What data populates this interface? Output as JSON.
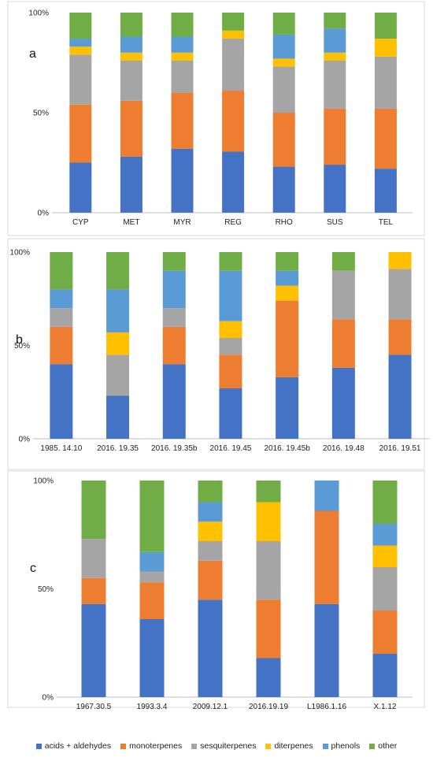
{
  "categories_order": [
    "acids + aldehydes",
    "monoterpenes",
    "sesquiterpenes",
    "diterpenes",
    "phenols",
    "other"
  ],
  "colors": {
    "acids + aldehydes": "#4472C4",
    "monoterpenes": "#ED7D31",
    "sesquiterpenes": "#A5A5A5",
    "diterpenes": "#FFC000",
    "phenols": "#5B9BD5",
    "other": "#70AD47"
  },
  "legend": {
    "items": [
      "acids + aldehydes",
      "monoterpenes",
      "sesquiterpenes",
      "diterpenes",
      "phenols",
      "other"
    ],
    "placement": "bottom"
  },
  "chart_data": [
    {
      "type": "bar",
      "stacked": true,
      "panel_label": "a",
      "yticks": [
        "0%",
        "50%",
        "100%"
      ],
      "ylim": [
        0,
        100
      ],
      "categories": [
        "CYP",
        "MET",
        "MYR",
        "REG",
        "RHO",
        "SUS",
        "TEL"
      ],
      "series": [
        {
          "name": "acids + aldehydes",
          "values": [
            25,
            28,
            32,
            30.5,
            23,
            24,
            22
          ]
        },
        {
          "name": "monoterpenes",
          "values": [
            29,
            28,
            28,
            30.5,
            27,
            28,
            30
          ]
        },
        {
          "name": "sesquiterpenes",
          "values": [
            25,
            20,
            16,
            26,
            23,
            24,
            26
          ]
        },
        {
          "name": "diterpenes",
          "values": [
            4,
            4,
            4,
            4,
            4,
            4,
            9
          ]
        },
        {
          "name": "phenols",
          "values": [
            4,
            8,
            8,
            0,
            12,
            12,
            0
          ]
        },
        {
          "name": "other",
          "values": [
            13,
            12,
            12,
            9,
            11,
            8,
            13
          ]
        }
      ]
    },
    {
      "type": "bar",
      "stacked": true,
      "panel_label": "b",
      "yticks": [
        "0%",
        "50%",
        "100%"
      ],
      "ylim": [
        0,
        100
      ],
      "categories": [
        "1985. 14.10",
        "2016. 19.35",
        "2016. 19.35b",
        "2016. 19.45",
        "2016. 19.45b",
        "2016. 19.48",
        "2016. 19.51"
      ],
      "series": [
        {
          "name": "acids + aldehydes",
          "values": [
            40,
            23,
            40,
            27,
            33,
            38,
            45
          ]
        },
        {
          "name": "monoterpenes",
          "values": [
            20,
            0,
            20,
            18,
            41,
            26,
            19
          ]
        },
        {
          "name": "sesquiterpenes",
          "values": [
            10,
            22,
            10,
            9,
            0,
            26,
            27
          ]
        },
        {
          "name": "diterpenes",
          "values": [
            0,
            12,
            0,
            9,
            8,
            0,
            9
          ]
        },
        {
          "name": "phenols",
          "values": [
            10,
            23,
            20,
            27,
            8,
            0,
            0
          ]
        },
        {
          "name": "other",
          "values": [
            20,
            20,
            10,
            10,
            10,
            10,
            0
          ]
        }
      ]
    },
    {
      "type": "bar",
      "stacked": true,
      "panel_label": "c",
      "yticks": [
        "0%",
        "50%",
        "100%"
      ],
      "ylim": [
        0,
        100
      ],
      "categories": [
        "1967.30.5",
        "1993.3.4",
        "2009.12.1",
        "2016.19.19",
        "L1986.1.16",
        "X.1.12"
      ],
      "series": [
        {
          "name": "acids + aldehydes",
          "values": [
            43,
            36,
            45,
            18,
            43,
            20
          ]
        },
        {
          "name": "monoterpenes",
          "values": [
            12,
            17,
            18,
            27,
            43,
            20
          ]
        },
        {
          "name": "sesquiterpenes",
          "values": [
            18,
            5,
            9,
            27,
            0,
            20
          ]
        },
        {
          "name": "diterpenes",
          "values": [
            0,
            0,
            9,
            18,
            0,
            10
          ]
        },
        {
          "name": "phenols",
          "values": [
            0,
            9,
            9,
            0,
            14,
            10
          ]
        },
        {
          "name": "other",
          "values": [
            27,
            33,
            10,
            10,
            0,
            20
          ]
        }
      ]
    }
  ]
}
